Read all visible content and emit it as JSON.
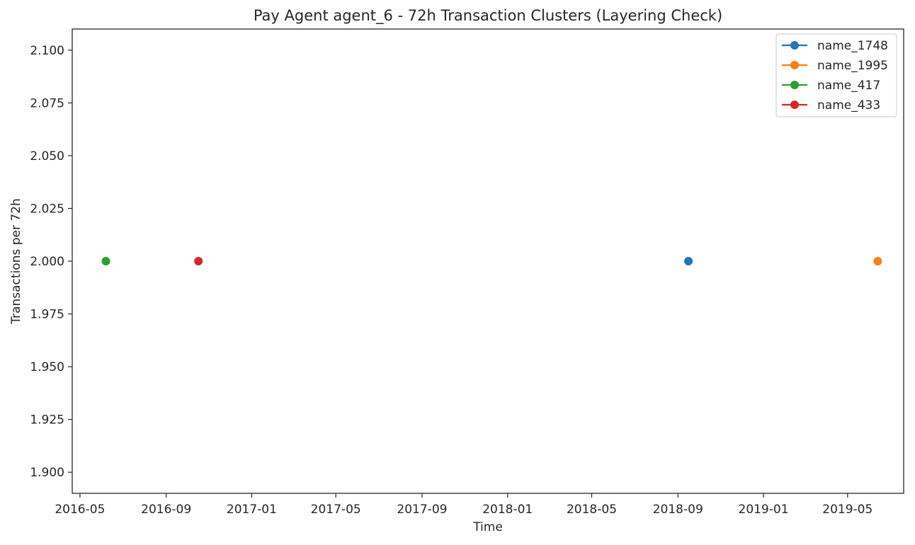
{
  "chart_data": {
    "type": "scatter",
    "title": "Pay Agent agent_6 - 72h Transaction Clusters (Layering Check)",
    "xlabel": "Time",
    "ylabel": "Transactions per 72h",
    "x_ticks": [
      "2016-05",
      "2016-09",
      "2017-01",
      "2017-05",
      "2017-09",
      "2018-01",
      "2018-05",
      "2018-09",
      "2019-01",
      "2019-05"
    ],
    "y_ticks": [
      "1.900",
      "1.925",
      "1.950",
      "1.975",
      "2.000",
      "2.025",
      "2.050",
      "2.075",
      "2.100"
    ],
    "xlim": [
      "2016-04-20",
      "2019-07-20"
    ],
    "ylim": [
      1.89,
      2.11
    ],
    "grid": false,
    "legend_position": "top-right",
    "series": [
      {
        "name": "name_1748",
        "color": "#1f77b4",
        "points": [
          {
            "x": "2018-09-16",
            "y": 2.0
          }
        ]
      },
      {
        "name": "name_1995",
        "color": "#ff7f0e",
        "points": [
          {
            "x": "2019-06-13",
            "y": 2.0
          }
        ]
      },
      {
        "name": "name_417",
        "color": "#2ca02c",
        "points": [
          {
            "x": "2016-06-07",
            "y": 2.0
          }
        ]
      },
      {
        "name": "name_433",
        "color": "#d62728",
        "points": [
          {
            "x": "2016-10-17",
            "y": 2.0
          }
        ]
      }
    ]
  }
}
